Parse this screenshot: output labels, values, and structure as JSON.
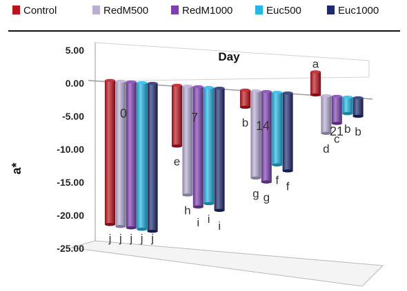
{
  "chart_data": {
    "type": "bar",
    "title": "",
    "xlabel": "Day",
    "ylabel": "a*",
    "categories": [
      "0",
      "7",
      "14",
      "21"
    ],
    "ylim": [
      -25,
      5
    ],
    "yticks": [
      "5.00",
      "0.00",
      "-5.00",
      "-10.00",
      "-15.00",
      "-20.00",
      "-25.00"
    ],
    "legend_position": "top",
    "series": [
      {
        "name": "Control",
        "color": "#c0101a",
        "values": [
          -21.8,
          -9.2,
          -2.6,
          3.5
        ],
        "letters": [
          "j",
          "e",
          "b",
          "a"
        ]
      },
      {
        "name": "RedM500",
        "color": "#b9aed6",
        "values": [
          -22.0,
          -16.5,
          -13.2,
          -5.7
        ],
        "letters": [
          "j",
          "h",
          "g",
          "d"
        ]
      },
      {
        "name": "RedM1000",
        "color": "#7d3fb3",
        "values": [
          -22.1,
          -18.2,
          -13.7,
          -4.1
        ],
        "letters": [
          "j",
          "i",
          "g",
          "c"
        ]
      },
      {
        "name": "Euc500",
        "color": "#1fb8e8",
        "values": [
          -22.2,
          -17.6,
          -11.0,
          -2.5
        ],
        "letters": [
          "j",
          "i",
          "f",
          "b"
        ]
      },
      {
        "name": "Euc1000",
        "color": "#1e2a6e",
        "values": [
          -22.4,
          -18.5,
          -11.8,
          -2.8
        ],
        "letters": [
          "j",
          "i",
          "f",
          "b"
        ]
      }
    ]
  }
}
